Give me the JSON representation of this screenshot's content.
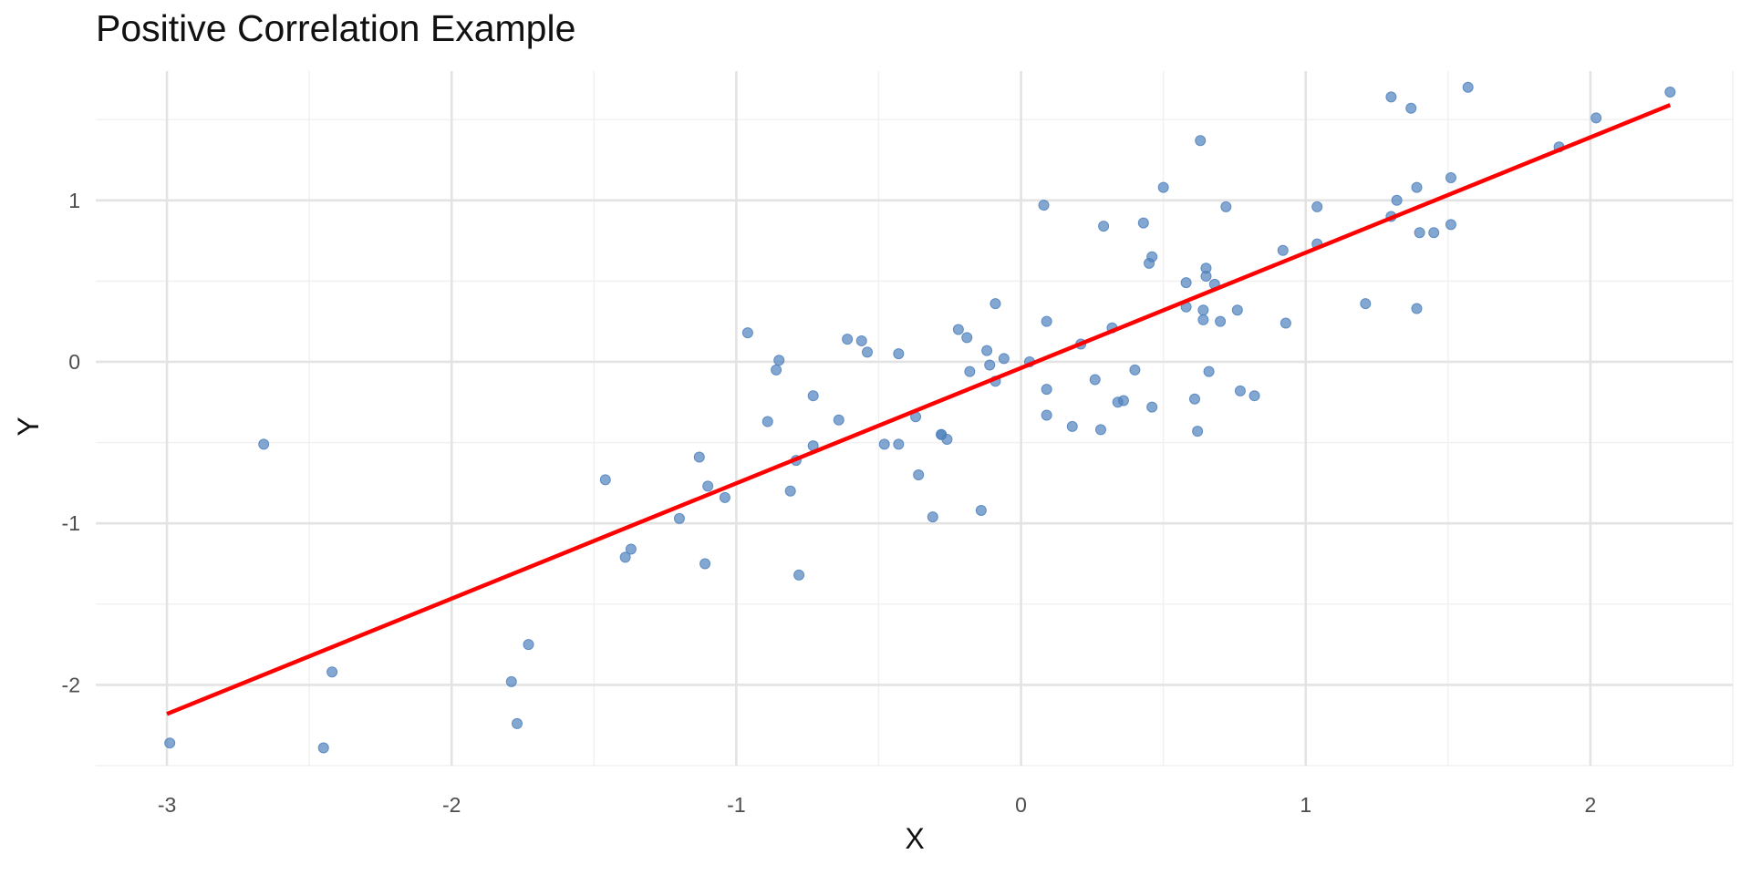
{
  "chart_data": {
    "type": "scatter",
    "title": "Positive Correlation Example",
    "xlabel": "X",
    "ylabel": "Y",
    "xlim": [
      -3.25,
      2.5
    ],
    "ylim": [
      -2.5,
      1.8
    ],
    "xticks": [
      -3,
      -2,
      -1,
      0,
      1,
      2
    ],
    "yticks": [
      -2,
      -1,
      0,
      1
    ],
    "grid": true,
    "colors": {
      "points": "#4f81bd",
      "fit_line": "#ff0000",
      "grid_major": "#e3e3e3",
      "grid_minor": "#f0f0f0"
    },
    "fit_line": {
      "x": [
        -3.0,
        2.28
      ],
      "y": [
        -2.18,
        1.59
      ]
    },
    "points": [
      {
        "x": -2.99,
        "y": -2.36
      },
      {
        "x": -2.66,
        "y": -0.51
      },
      {
        "x": -2.45,
        "y": -2.39
      },
      {
        "x": -2.42,
        "y": -1.92
      },
      {
        "x": -1.79,
        "y": -1.98
      },
      {
        "x": -1.77,
        "y": -2.24
      },
      {
        "x": -1.73,
        "y": -1.75
      },
      {
        "x": -1.46,
        "y": -0.73
      },
      {
        "x": -1.39,
        "y": -1.21
      },
      {
        "x": -1.37,
        "y": -1.16
      },
      {
        "x": -1.2,
        "y": -0.97
      },
      {
        "x": -1.13,
        "y": -0.59
      },
      {
        "x": -1.11,
        "y": -1.25
      },
      {
        "x": -1.1,
        "y": -0.77
      },
      {
        "x": -1.04,
        "y": -0.84
      },
      {
        "x": -0.96,
        "y": 0.18
      },
      {
        "x": -0.89,
        "y": -0.37
      },
      {
        "x": -0.86,
        "y": -0.05
      },
      {
        "x": -0.85,
        "y": 0.01
      },
      {
        "x": -0.81,
        "y": -0.8
      },
      {
        "x": -0.79,
        "y": -0.61
      },
      {
        "x": -0.78,
        "y": -1.32
      },
      {
        "x": -0.73,
        "y": -0.52
      },
      {
        "x": -0.73,
        "y": -0.21
      },
      {
        "x": -0.64,
        "y": -0.36
      },
      {
        "x": -0.61,
        "y": 0.14
      },
      {
        "x": -0.56,
        "y": 0.13
      },
      {
        "x": -0.54,
        "y": 0.06
      },
      {
        "x": -0.48,
        "y": -0.51
      },
      {
        "x": -0.43,
        "y": -0.51
      },
      {
        "x": -0.43,
        "y": 0.05
      },
      {
        "x": -0.37,
        "y": -0.34
      },
      {
        "x": -0.36,
        "y": -0.7
      },
      {
        "x": -0.31,
        "y": -0.96
      },
      {
        "x": -0.28,
        "y": -0.45
      },
      {
        "x": -0.28,
        "y": -0.45
      },
      {
        "x": -0.26,
        "y": -0.48
      },
      {
        "x": -0.22,
        "y": 0.2
      },
      {
        "x": -0.19,
        "y": 0.15
      },
      {
        "x": -0.18,
        "y": -0.06
      },
      {
        "x": -0.14,
        "y": -0.92
      },
      {
        "x": -0.12,
        "y": 0.07
      },
      {
        "x": -0.11,
        "y": -0.02
      },
      {
        "x": -0.09,
        "y": -0.12
      },
      {
        "x": -0.09,
        "y": 0.36
      },
      {
        "x": -0.06,
        "y": 0.02
      },
      {
        "x": 0.03,
        "y": 0.0
      },
      {
        "x": 0.08,
        "y": 0.97
      },
      {
        "x": 0.09,
        "y": 0.25
      },
      {
        "x": 0.09,
        "y": -0.17
      },
      {
        "x": 0.09,
        "y": -0.33
      },
      {
        "x": 0.18,
        "y": -0.4
      },
      {
        "x": 0.21,
        "y": 0.11
      },
      {
        "x": 0.26,
        "y": -0.11
      },
      {
        "x": 0.28,
        "y": -0.42
      },
      {
        "x": 0.29,
        "y": 0.84
      },
      {
        "x": 0.32,
        "y": 0.21
      },
      {
        "x": 0.34,
        "y": -0.25
      },
      {
        "x": 0.36,
        "y": -0.24
      },
      {
        "x": 0.4,
        "y": -0.05
      },
      {
        "x": 0.43,
        "y": 0.86
      },
      {
        "x": 0.45,
        "y": 0.61
      },
      {
        "x": 0.46,
        "y": 0.65
      },
      {
        "x": 0.46,
        "y": -0.28
      },
      {
        "x": 0.5,
        "y": 1.08
      },
      {
        "x": 0.58,
        "y": 0.49
      },
      {
        "x": 0.58,
        "y": 0.34
      },
      {
        "x": 0.61,
        "y": -0.23
      },
      {
        "x": 0.62,
        "y": -0.43
      },
      {
        "x": 0.63,
        "y": 1.37
      },
      {
        "x": 0.64,
        "y": 0.26
      },
      {
        "x": 0.64,
        "y": 0.32
      },
      {
        "x": 0.65,
        "y": 0.58
      },
      {
        "x": 0.65,
        "y": 0.53
      },
      {
        "x": 0.66,
        "y": -0.06
      },
      {
        "x": 0.68,
        "y": 0.48
      },
      {
        "x": 0.7,
        "y": 0.25
      },
      {
        "x": 0.72,
        "y": 0.96
      },
      {
        "x": 0.76,
        "y": 0.32
      },
      {
        "x": 0.77,
        "y": -0.18
      },
      {
        "x": 0.82,
        "y": -0.21
      },
      {
        "x": 0.92,
        "y": 0.69
      },
      {
        "x": 0.93,
        "y": 0.24
      },
      {
        "x": 1.04,
        "y": 0.96
      },
      {
        "x": 1.04,
        "y": 0.73
      },
      {
        "x": 1.21,
        "y": 0.36
      },
      {
        "x": 1.3,
        "y": 1.64
      },
      {
        "x": 1.3,
        "y": 0.9
      },
      {
        "x": 1.32,
        "y": 1.0
      },
      {
        "x": 1.37,
        "y": 1.57
      },
      {
        "x": 1.39,
        "y": 1.08
      },
      {
        "x": 1.39,
        "y": 0.33
      },
      {
        "x": 1.4,
        "y": 0.8
      },
      {
        "x": 1.45,
        "y": 0.8
      },
      {
        "x": 1.51,
        "y": 1.14
      },
      {
        "x": 1.51,
        "y": 0.85
      },
      {
        "x": 1.57,
        "y": 1.7
      },
      {
        "x": 1.89,
        "y": 1.33
      },
      {
        "x": 2.02,
        "y": 1.51
      },
      {
        "x": 2.28,
        "y": 1.67
      }
    ]
  }
}
